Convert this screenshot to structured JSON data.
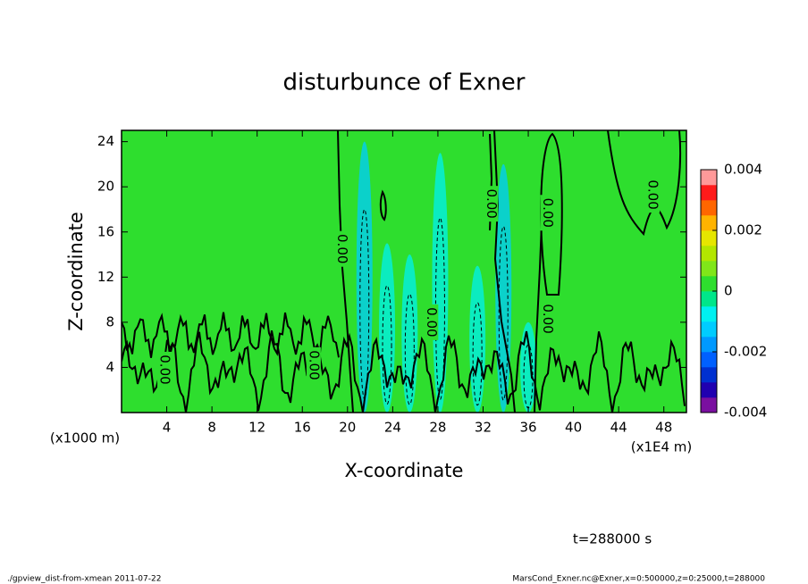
{
  "chart_data": {
    "type": "contour",
    "title": "disturbunce of Exner",
    "x_label": "X-coordinate",
    "y_label": "Z-coordinate",
    "x_unit": "(x1E4 m)",
    "y_unit": "(x1000 m)",
    "xlim": [
      0,
      50
    ],
    "xticks": [
      4,
      8,
      12,
      16,
      20,
      24,
      28,
      32,
      36,
      40,
      44,
      48
    ],
    "ylim": [
      0,
      25
    ],
    "yticks": [
      4,
      8,
      12,
      16,
      20,
      24
    ],
    "clim": [
      -0.004,
      0.004
    ],
    "cticks": [
      -0.004,
      -0.002,
      0,
      0.002,
      0.004
    ],
    "colors": [
      "#7a0fa0",
      "#2000b0",
      "#0030d0",
      "#0060ff",
      "#0099ff",
      "#00ccff",
      "#00f0f0",
      "#00e68a",
      "#2ede2e",
      "#80e619",
      "#b3e600",
      "#e6e600",
      "#ffb300",
      "#ff6600",
      "#ff1a1a",
      "#ff9999"
    ],
    "plumes": [
      {
        "x": 21.5,
        "z_top": 24,
        "value": -0.0012
      },
      {
        "x": 23.5,
        "z_top": 15,
        "value": -0.0008
      },
      {
        "x": 25.5,
        "z_top": 14,
        "value": -0.0007
      },
      {
        "x": 28.2,
        "z_top": 23,
        "value": -0.001
      },
      {
        "x": 31.5,
        "z_top": 13,
        "value": -0.0009
      },
      {
        "x": 33.8,
        "z_top": 22,
        "value": -0.0015
      },
      {
        "x": 36,
        "z_top": 8,
        "value": -0.0006
      }
    ],
    "contour_labels": [
      {
        "x": 3.8,
        "y": 3.8,
        "label": "0.00"
      },
      {
        "x": 17,
        "y": 4.2,
        "label": "0.00"
      },
      {
        "x": 19.5,
        "y": 14.5,
        "label": "0.00"
      },
      {
        "x": 27.4,
        "y": 8,
        "label": "0.00"
      },
      {
        "x": 32.7,
        "y": 18.5,
        "label": "0.00"
      },
      {
        "x": 37.7,
        "y": 8.3,
        "label": "0.00"
      },
      {
        "x": 37.7,
        "y": 17.7,
        "label": "0.00"
      },
      {
        "x": 47,
        "y": 19.3,
        "label": "0.00"
      }
    ],
    "annotation": "t=288000 s"
  },
  "footer": {
    "left": "./gpview_dist-from-xmean  2011-07-22",
    "right": "MarsCond_Exner.nc@Exner,x=0:500000,z=0:25000,t=288000"
  }
}
